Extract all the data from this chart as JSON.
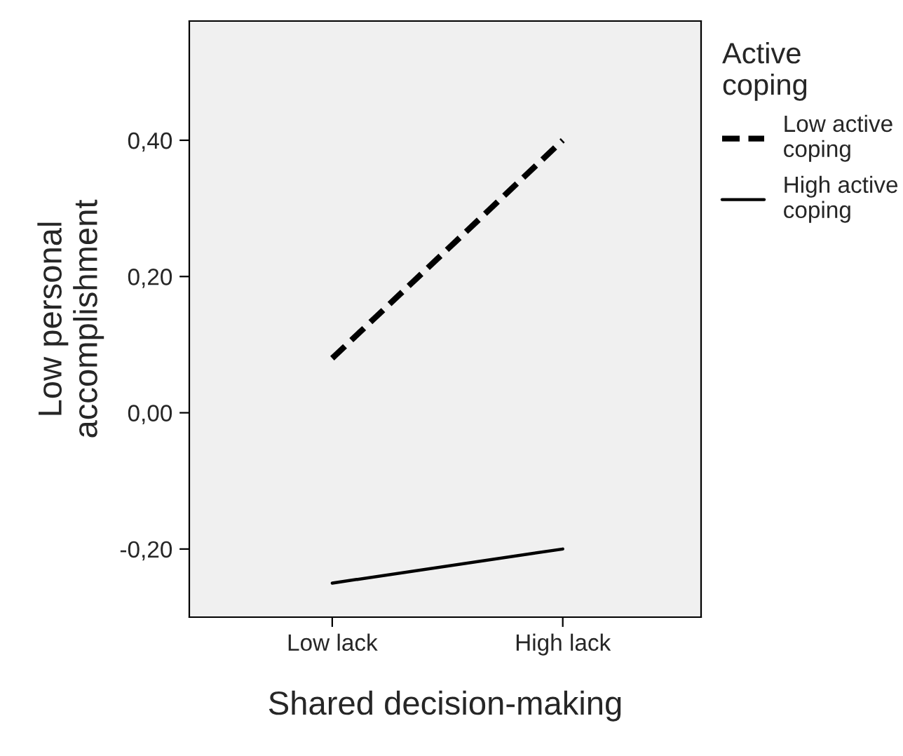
{
  "chart_data": {
    "type": "line",
    "xlabel": "Shared decision-making",
    "ylabel": "Low personal\naccomplishment",
    "legend_title": "Active\ncoping",
    "categories": [
      "Low lack",
      "High lack"
    ],
    "series": [
      {
        "name": "Low active\ncoping",
        "color": "#000000",
        "line_style": "dashed",
        "values": [
          0.08,
          0.4
        ]
      },
      {
        "name": "High active\ncoping",
        "color": "#000000",
        "line_style": "solid",
        "values": [
          -0.25,
          -0.2
        ]
      }
    ],
    "ylim": [
      -0.3,
      0.575
    ],
    "yticks": [
      {
        "value": -0.2,
        "label": "-0,20"
      },
      {
        "value": 0.0,
        "label": "0,00"
      },
      {
        "value": 0.2,
        "label": "0,20"
      },
      {
        "value": 0.4,
        "label": "0,40"
      }
    ],
    "grid": false,
    "legend": "right",
    "marker": "none"
  }
}
